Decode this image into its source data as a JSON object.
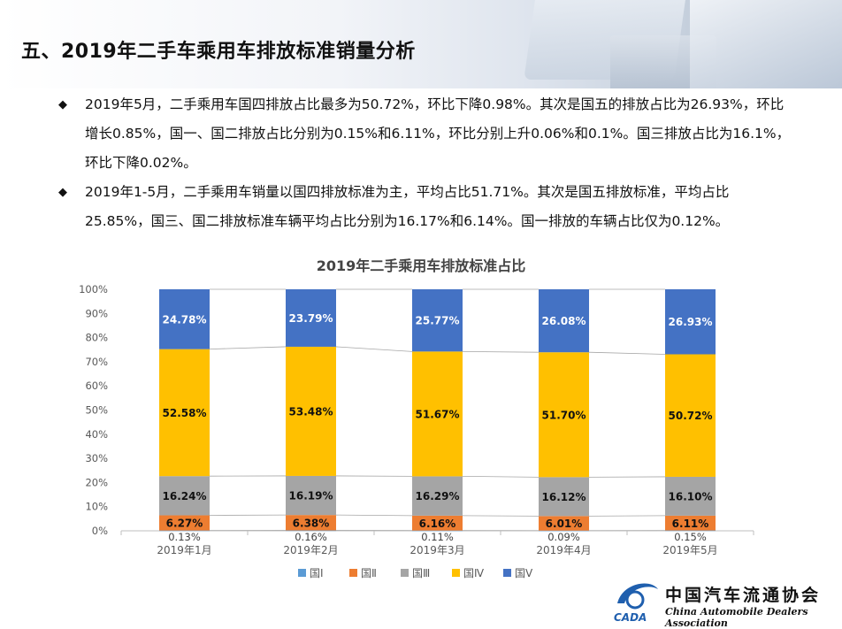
{
  "header": {
    "title": "五、2019年二手车乘用车排放标准销量分析"
  },
  "bullets": [
    {
      "mark": "◆",
      "text": "2019年5月，二手乘用车国四排放占比最多为50.72%，环比下降0.98%。其次是国五的排放占比为26.93%，环比增长0.85%，国一、国二排放占比分别为0.15%和6.11%，环比分别上升0.06%和0.1%。国三排放占比为16.1%，环比下降0.02%。"
    },
    {
      "mark": "◆",
      "text": "2019年1-5月，二手乘用车销量以国四排放标准为主，平均占比51.71%。其次是国五排放标准，平均占比25.85%，国三、国二排放标准车辆平均占比分别为16.17%和6.14%。国一排放的车辆占比仅为0.12%。"
    }
  ],
  "logo": {
    "cn": "中国汽车流通协会",
    "en": "China Automobile Dealers Association",
    "abbr": "CADA"
  },
  "colors": {
    "s1": "#5B9BD5",
    "s2": "#ED7D31",
    "s3": "#A5A5A5",
    "s4": "#FFC000",
    "s5": "#4472C4"
  },
  "chart_data": {
    "type": "bar",
    "stacked": true,
    "title": "2019年二手乘用车排放标准占比",
    "categories": [
      "2019年1月",
      "2019年2月",
      "2019年3月",
      "2019年4月",
      "2019年5月"
    ],
    "series": [
      {
        "name": "国Ⅰ",
        "values": [
          0.13,
          0.16,
          0.11,
          0.09,
          0.15
        ],
        "labels": [
          "0.13%",
          "0.16%",
          "0.11%",
          "0.09%",
          "0.15%"
        ]
      },
      {
        "name": "国Ⅱ",
        "values": [
          6.27,
          6.38,
          6.16,
          6.01,
          6.11
        ],
        "labels": [
          "6.27%",
          "6.38%",
          "6.16%",
          "6.01%",
          "6.11%"
        ]
      },
      {
        "name": "国Ⅲ",
        "values": [
          16.24,
          16.19,
          16.29,
          16.12,
          16.1
        ],
        "labels": [
          "16.24%",
          "16.19%",
          "16.29%",
          "16.12%",
          "16.10%"
        ]
      },
      {
        "name": "国Ⅳ",
        "values": [
          52.58,
          53.48,
          51.67,
          51.7,
          50.72
        ],
        "labels": [
          "52.58%",
          "53.48%",
          "51.67%",
          "51.70%",
          "50.72%"
        ]
      },
      {
        "name": "国Ⅴ",
        "values": [
          24.78,
          23.79,
          25.77,
          26.08,
          26.93
        ],
        "labels": [
          "24.78%",
          "23.79%",
          "25.77%",
          "26.08%",
          "26.93%"
        ]
      }
    ],
    "yticks": [
      "0%",
      "10%",
      "20%",
      "30%",
      "40%",
      "50%",
      "60%",
      "70%",
      "80%",
      "90%",
      "100%"
    ],
    "ylim": [
      0,
      100
    ],
    "legend": "bottom",
    "series_lines": true,
    "grid": false
  }
}
